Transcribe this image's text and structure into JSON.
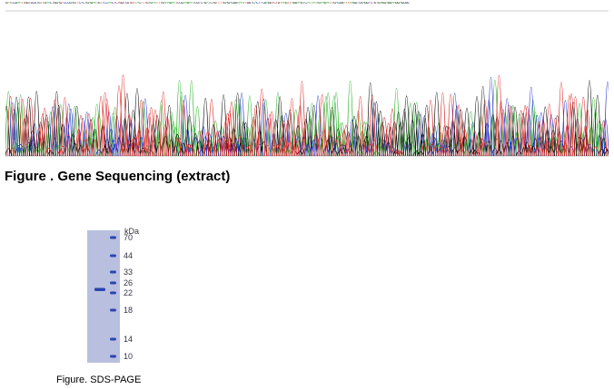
{
  "sequencing": {
    "sequence": "GATCCGAATTGGTGCGTGTTGAACTGGAGTCCCGAGTTCACTGAGAATGTTCCAACTCTGGTCGTGTTACTTTGTGAATTTGAAAGAATCCGAAGAATCGTCTGATCAGTTTTGAGACGGAAATTGGTCACTTCGAGGTCTGTAAGTTAGGAAGTCATTAATGAAGAATTGACGGATTAAGGTCGAGGTCTGTGAGGAGGAAGGAGCGG",
    "base_colors": {
      "A": "#2bb52b",
      "C": "#2233cc",
      "G": "#111111",
      "T": "#dd2222"
    },
    "caption": "Figure . Gene Sequencing (extract)"
  },
  "sds_page": {
    "unit_label": "kDa",
    "markers": [
      "70",
      "44",
      "33",
      "26",
      "22",
      "18",
      "14",
      "10"
    ],
    "caption": "Figure. SDS-PAGE",
    "gel_color": "#b9bfdf",
    "band_color": "#2a45b0"
  }
}
